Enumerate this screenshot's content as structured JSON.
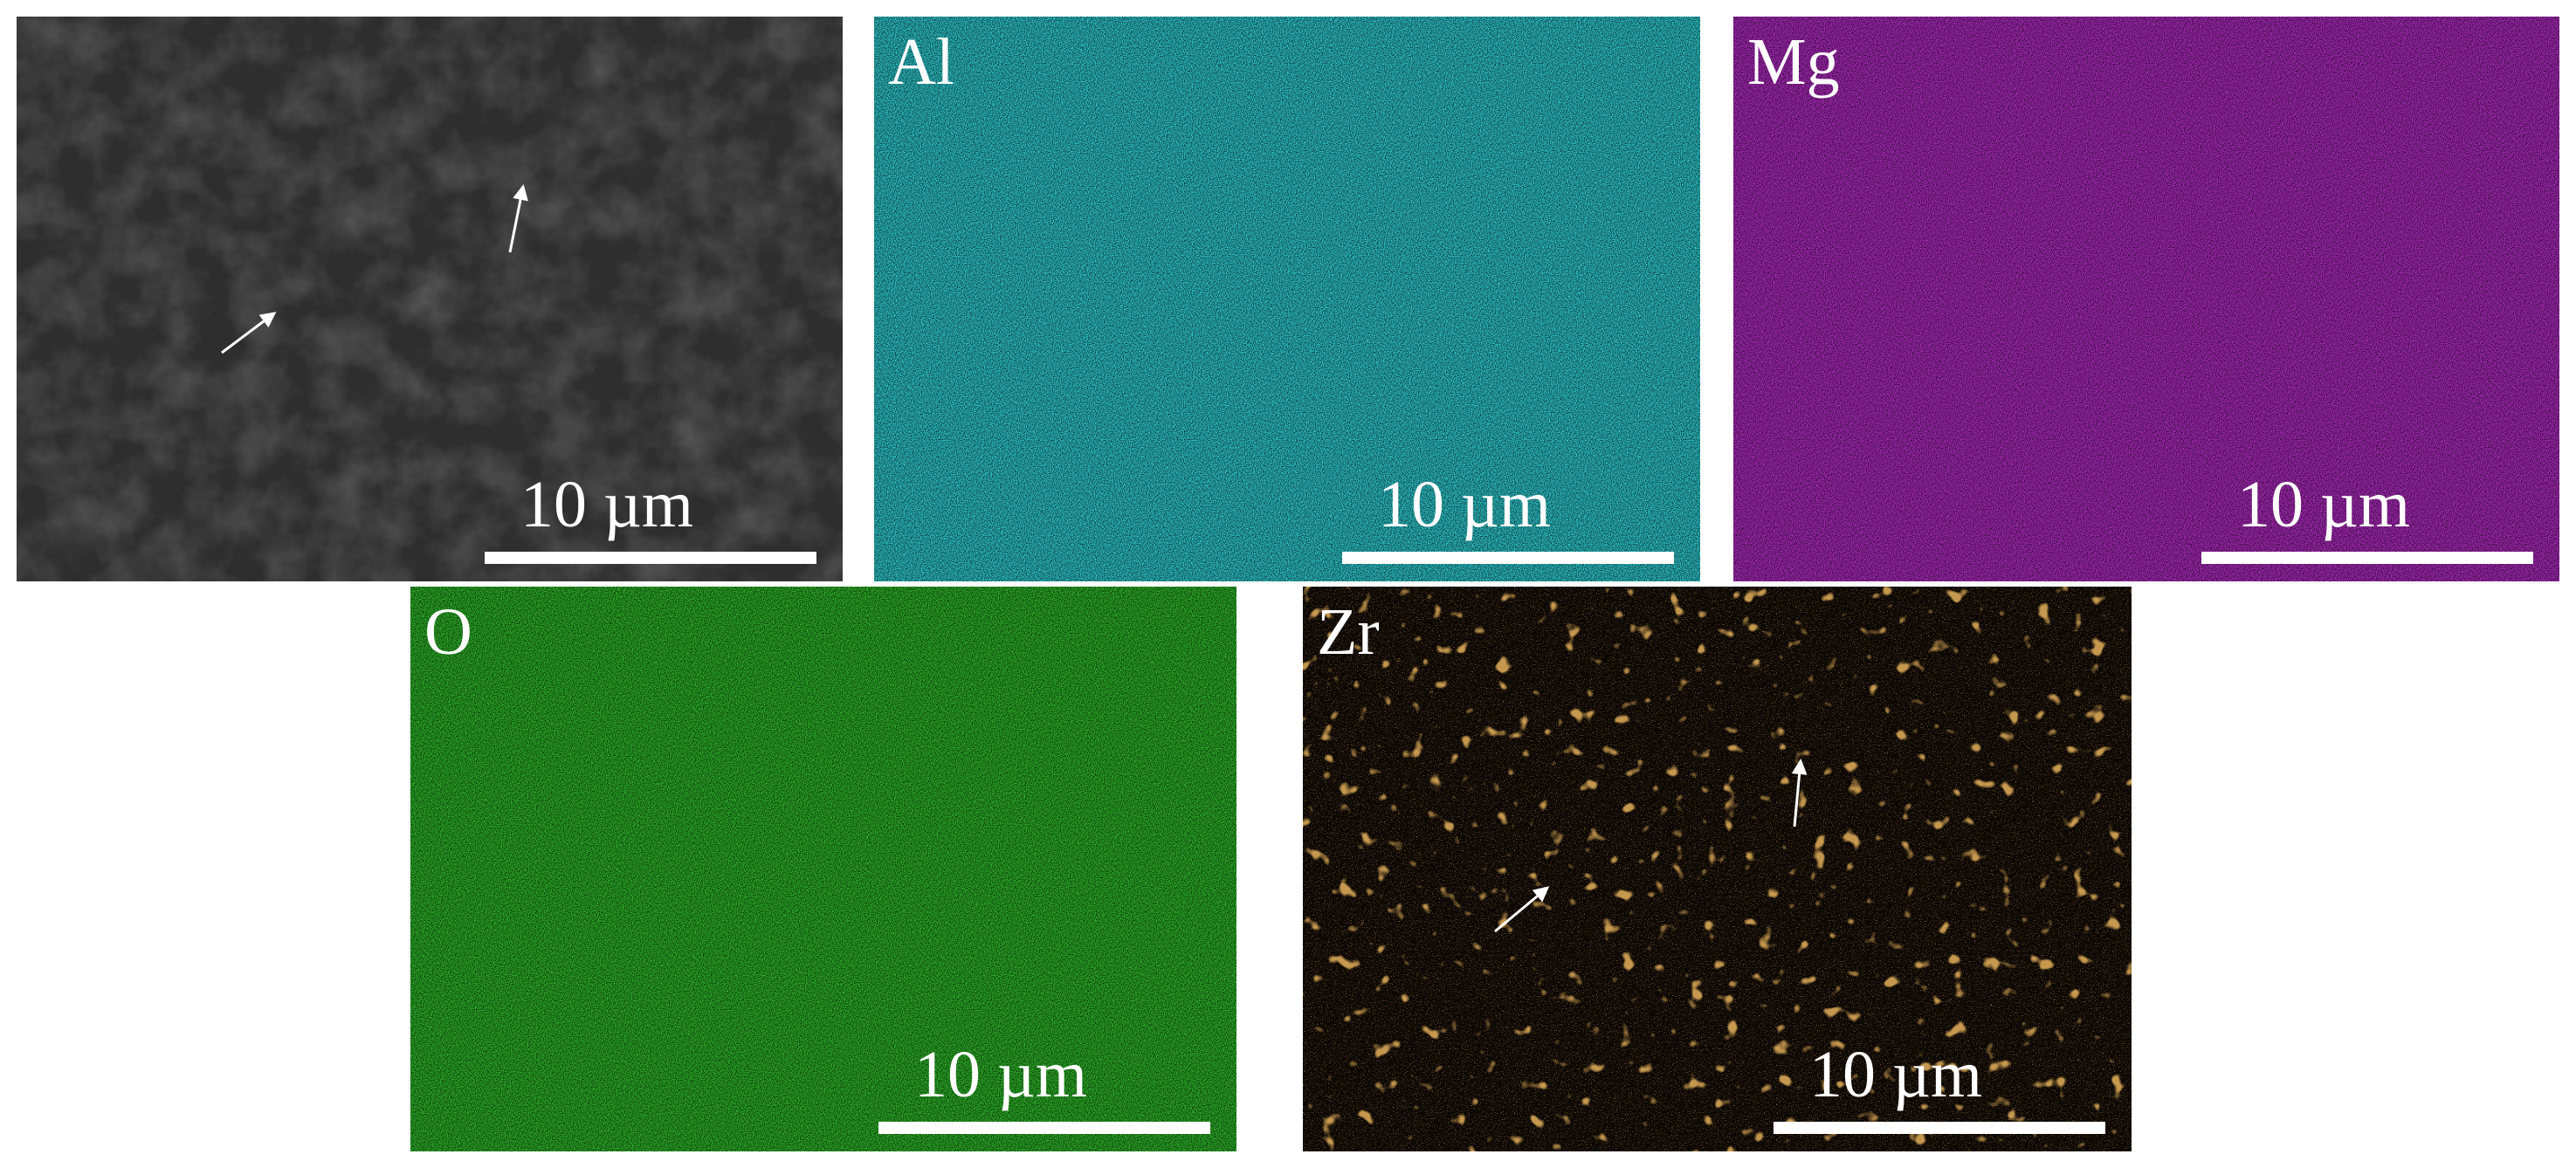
{
  "panels": [
    {
      "scale_bar": "10 µm"
    },
    {
      "label": "Al",
      "scale_bar": "10 µm"
    },
    {
      "label": "Mg",
      "scale_bar": "10 µm"
    },
    {
      "label": "O",
      "scale_bar": "10 µm"
    },
    {
      "label": "Zr",
      "scale_bar": "10 µm"
    }
  ]
}
